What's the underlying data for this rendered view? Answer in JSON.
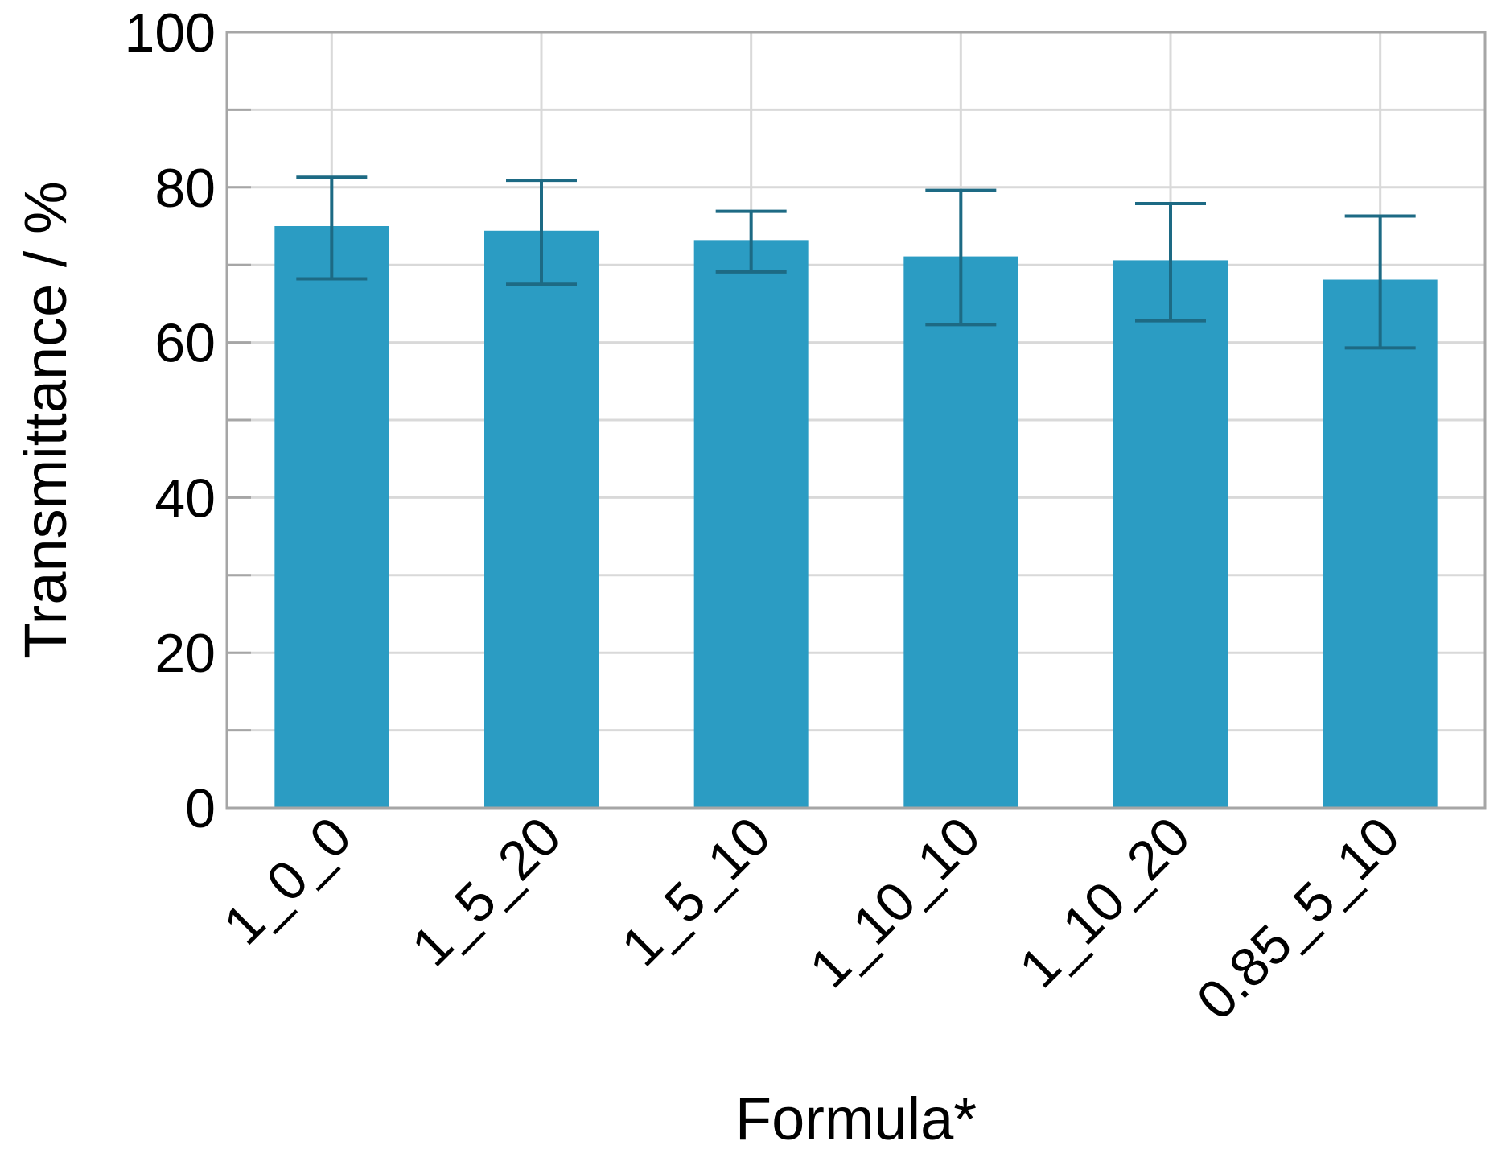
{
  "chart_data": {
    "type": "bar",
    "title": "",
    "xlabel": "Formula*",
    "ylabel": "Transmittance / %",
    "categories": [
      "1_0_0",
      "1_5_20",
      "1_5_10",
      "1_10_10",
      "1_10_20",
      "0.85_5_10"
    ],
    "series": [
      {
        "values": [
          75.0,
          74.4,
          73.2,
          71.1,
          70.6,
          68.1
        ],
        "error_upper": [
          81.3,
          80.9,
          76.9,
          79.6,
          77.9,
          76.3
        ],
        "error_lower": [
          68.2,
          67.5,
          69.1,
          62.3,
          62.8,
          59.3
        ]
      }
    ],
    "ylim": [
      0,
      100
    ],
    "yticks": [
      "0",
      "20",
      "40",
      "60",
      "80",
      "100"
    ],
    "minor_ytick_step": 10,
    "grid": true,
    "legend": "none",
    "colors": {
      "bar": "#2b9cc3",
      "error_bar": "#1d6a84",
      "grid": "#d9d9d9",
      "frame": "#a6a6a6"
    }
  }
}
